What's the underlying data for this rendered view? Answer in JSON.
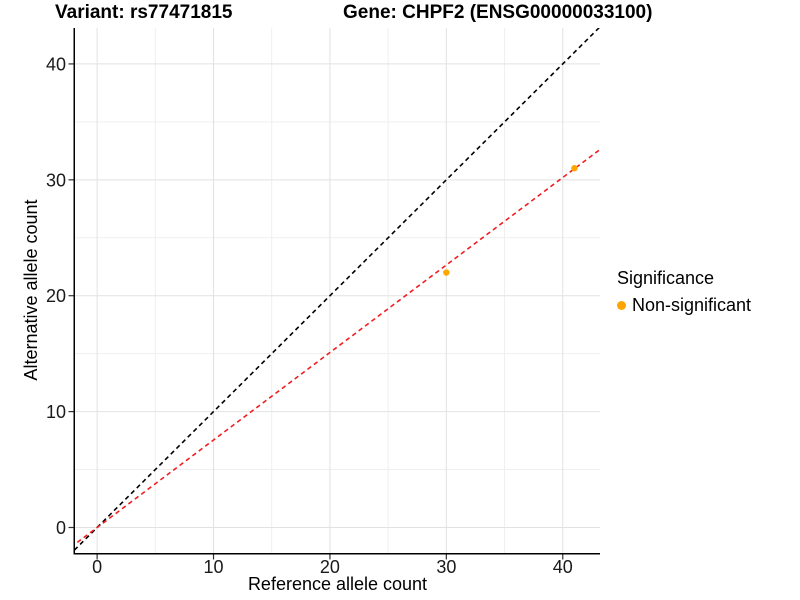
{
  "figure": {
    "title_left": "Variant: rs77471815",
    "title_right": "Gene: CHPF2 (ENSG00000033100)"
  },
  "chart_data": {
    "type": "scatter",
    "title_left": "Variant: rs77471815",
    "title_right": "Gene: CHPF2 (ENSG00000033100)",
    "xlabel": "Reference allele count",
    "ylabel": "Alternative allele count",
    "xlim": [
      -1.9,
      43.2
    ],
    "ylim": [
      -2.2,
      43.1
    ],
    "x_ticks": [
      0,
      10,
      20,
      30,
      40
    ],
    "y_ticks": [
      0,
      10,
      20,
      30,
      40
    ],
    "grid": "major+minor",
    "style": {
      "grid_major_color": "#e2e2e2",
      "grid_minor_color": "#efefef",
      "axis_color": "#000000",
      "tick_color": "#333333",
      "point_color": "#FFA500",
      "identity_color": "#000000",
      "regression_color": "#F01E23"
    },
    "series": [
      {
        "name": "Non-significant",
        "color": "#FFA500",
        "points": [
          {
            "x": 30,
            "y": 22
          },
          {
            "x": 41,
            "y": 31
          }
        ]
      }
    ],
    "lines": [
      {
        "name": "identity-line",
        "style": "dashed",
        "color": "#000000",
        "slope": 1,
        "intercept": 0
      },
      {
        "name": "regression-line",
        "style": "dashed",
        "color": "#F01E23",
        "slope": 0.755,
        "intercept": 0
      }
    ],
    "legend": {
      "title": "Significance",
      "position": "right",
      "entries": [
        {
          "label": "Non-significant",
          "color": "#FFA500",
          "marker": "circle"
        }
      ]
    }
  }
}
